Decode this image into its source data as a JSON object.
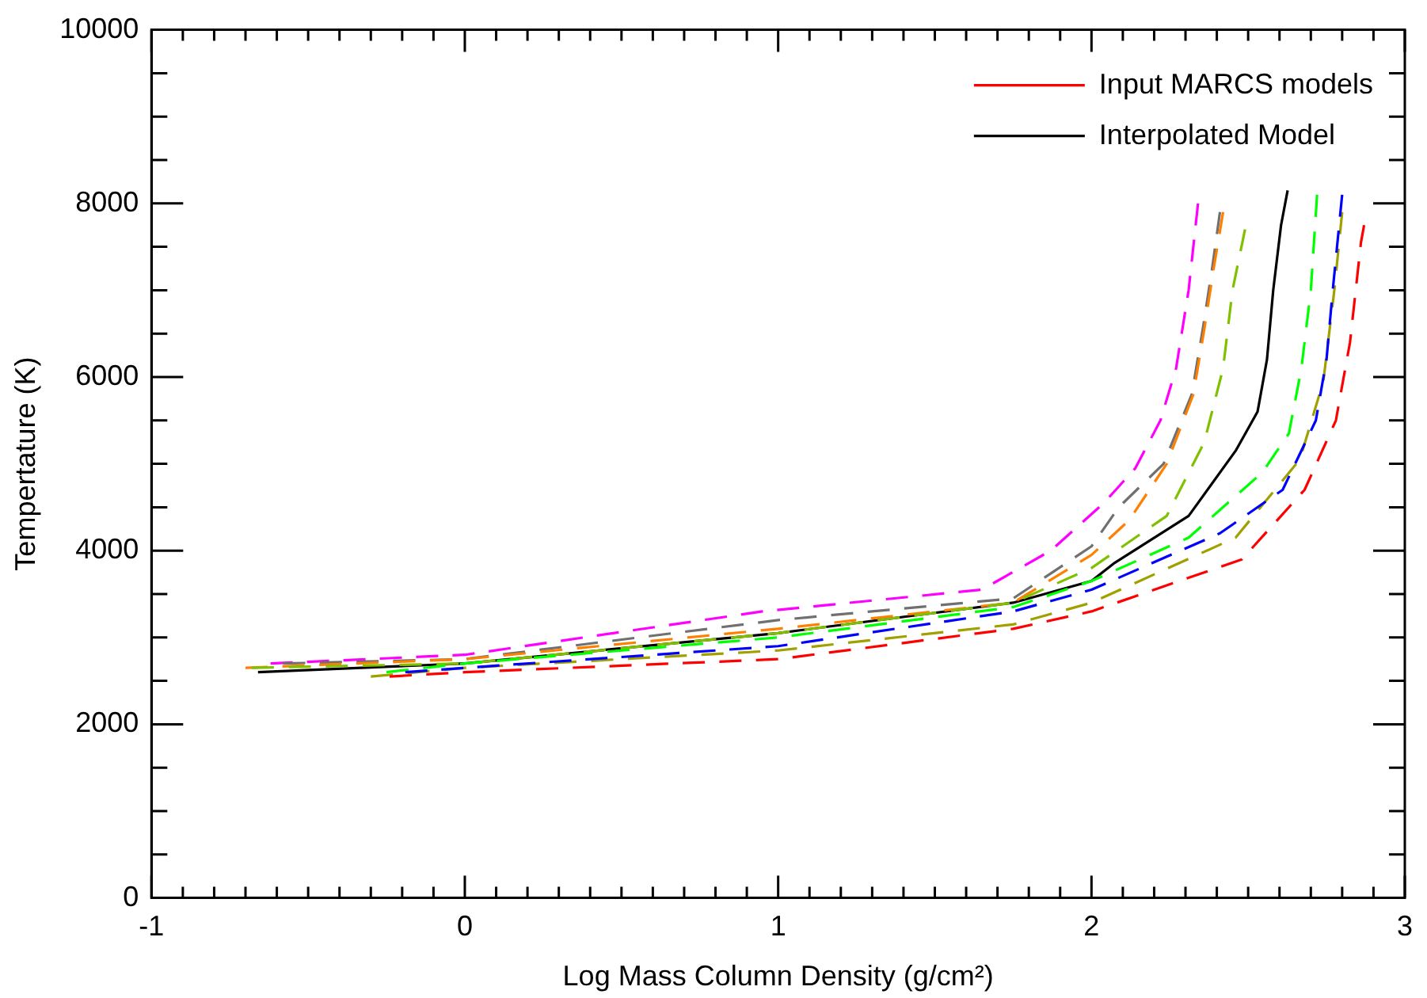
{
  "chart_data": {
    "type": "line",
    "xlabel": "Log Mass Column Density (g/cm²)",
    "ylabel": "Tempertature (K)",
    "xlim": [
      -1,
      3
    ],
    "ylim": [
      0,
      10000
    ],
    "xticks": [
      -1,
      {
        "value": -0.9,
        "label": null
      },
      {
        "value": -0.8,
        "label": null
      },
      {
        "value": -0.7,
        "label": null
      },
      {
        "value": -0.6,
        "label": null
      },
      {
        "value": -0.5,
        "label": null
      },
      {
        "value": -0.4,
        "label": null
      },
      {
        "value": -0.3,
        "label": null
      },
      {
        "value": -0.2,
        "label": null
      },
      {
        "value": -0.1,
        "label": null
      },
      0,
      {
        "value": 0.1,
        "label": null
      },
      {
        "value": 0.2,
        "label": null
      },
      {
        "value": 0.3,
        "label": null
      },
      {
        "value": 0.4,
        "label": null
      },
      {
        "value": 0.5,
        "label": null
      },
      {
        "value": 0.6,
        "label": null
      },
      {
        "value": 0.7,
        "label": null
      },
      {
        "value": 0.8,
        "label": null
      },
      {
        "value": 0.9,
        "label": null
      },
      1,
      {
        "value": 1.1,
        "label": null
      },
      {
        "value": 1.2,
        "label": null
      },
      {
        "value": 1.3,
        "label": null
      },
      {
        "value": 1.4,
        "label": null
      },
      {
        "value": 1.5,
        "label": null
      },
      {
        "value": 1.6,
        "label": null
      },
      {
        "value": 1.7,
        "label": null
      },
      {
        "value": 1.8,
        "label": null
      },
      {
        "value": 1.9,
        "label": null
      },
      2,
      {
        "value": 2.1,
        "label": null
      },
      {
        "value": 2.2,
        "label": null
      },
      {
        "value": 2.3,
        "label": null
      },
      {
        "value": 2.4,
        "label": null
      },
      {
        "value": 2.5,
        "label": null
      },
      {
        "value": 2.6,
        "label": null
      },
      {
        "value": 2.7,
        "label": null
      },
      {
        "value": 2.8,
        "label": null
      },
      {
        "value": 2.9,
        "label": null
      },
      3
    ],
    "yticks": [
      0,
      {
        "value": 500,
        "label": null
      },
      {
        "value": 1000,
        "label": null
      },
      {
        "value": 1500,
        "label": null
      },
      2000,
      {
        "value": 2500,
        "label": null
      },
      {
        "value": 3000,
        "label": null
      },
      {
        "value": 3500,
        "label": null
      },
      4000,
      {
        "value": 4500,
        "label": null
      },
      {
        "value": 5000,
        "label": null
      },
      {
        "value": 5500,
        "label": null
      },
      6000,
      {
        "value": 6500,
        "label": null
      },
      {
        "value": 7000,
        "label": null
      },
      {
        "value": 7500,
        "label": null
      },
      8000,
      {
        "value": 8500,
        "label": null
      },
      {
        "value": 9000,
        "label": null
      },
      {
        "value": 9500,
        "label": null
      },
      10000
    ],
    "grid": false,
    "legend": "top right",
    "marker": "none",
    "series": [
      {
        "name": "Input MARCS models",
        "color": "#ff0000",
        "line_style": "dashed",
        "x": [
          -0.24,
          0,
          1,
          1.75,
          2,
          2.48,
          2.68,
          2.78,
          2.825,
          2.86,
          2.87
        ],
        "values": [
          2550,
          2600,
          2750,
          3100,
          3300,
          3900,
          4700,
          5500,
          6400,
          7550,
          7750
        ]
      },
      {
        "color": "#0000ff",
        "line_style": "dashed",
        "x": [
          -0.19,
          0,
          1,
          1.75,
          2,
          2.41,
          2.61,
          2.716,
          2.75,
          2.77,
          2.8
        ],
        "values": [
          2600,
          2650,
          2900,
          3300,
          3550,
          4200,
          4700,
          5500,
          6200,
          7000,
          8100
        ]
      },
      {
        "color": "#a0a000",
        "line_style": "dashed",
        "x": [
          -0.3,
          0,
          1,
          1.75,
          2,
          2.46,
          2.665,
          2.74,
          2.775,
          2.8
        ],
        "values": [
          2550,
          2650,
          2850,
          3150,
          3400,
          4150,
          5050,
          5950,
          7000,
          7900
        ]
      },
      {
        "color": "#00ff00",
        "line_style": "dashed",
        "x": [
          -0.25,
          0,
          1,
          1.75,
          2,
          2.31,
          2.545,
          2.63,
          2.67,
          2.7,
          2.72
        ],
        "values": [
          2600,
          2700,
          3000,
          3350,
          3650,
          4150,
          4900,
          5350,
          6100,
          7000,
          8100
        ]
      },
      {
        "color": "#80c000",
        "line_style": "dashed",
        "x": [
          -0.68,
          0,
          1,
          1.75,
          2,
          2.24,
          2.36,
          2.42,
          2.45,
          2.49
        ],
        "values": [
          2650,
          2700,
          3050,
          3400,
          3800,
          4400,
          5250,
          6100,
          7000,
          7700
        ]
      },
      {
        "color": "#ff8000",
        "line_style": "dashed",
        "x": [
          -0.7,
          0,
          1,
          1.75,
          2,
          2.12,
          2.24,
          2.325,
          2.36,
          2.39,
          2.42
        ],
        "values": [
          2650,
          2750,
          3100,
          3400,
          3950,
          4350,
          5000,
          5800,
          6550,
          7250,
          7900
        ]
      },
      {
        "color": "#707070",
        "line_style": "dashed",
        "x": [
          -0.58,
          0,
          1,
          1.75,
          2,
          2.087,
          2.23,
          2.32,
          2.355,
          2.385,
          2.41
        ],
        "values": [
          2700,
          2750,
          3200,
          3450,
          4050,
          4500,
          5000,
          5800,
          6550,
          7250,
          7900
        ]
      },
      {
        "color": "#ff00ff",
        "line_style": "dashed",
        "x": [
          -0.62,
          0,
          0.95,
          1.65,
          1.87,
          2.04,
          2.14,
          2.22,
          2.27,
          2.31,
          2.34
        ],
        "values": [
          2700,
          2800,
          3300,
          3550,
          4000,
          4550,
          4950,
          5500,
          6100,
          7000,
          8000
        ]
      },
      {
        "name": "Interpolated Model",
        "color": "#000000",
        "line_style": "solid",
        "x": [
          -0.66,
          0,
          1,
          1.75,
          2,
          2.07,
          2.31,
          2.46,
          2.53,
          2.56,
          2.58,
          2.605,
          2.626
        ],
        "values": [
          2600,
          2700,
          3050,
          3400,
          3650,
          3850,
          4400,
          5150,
          5600,
          6200,
          7000,
          7750,
          8150
        ]
      }
    ]
  }
}
